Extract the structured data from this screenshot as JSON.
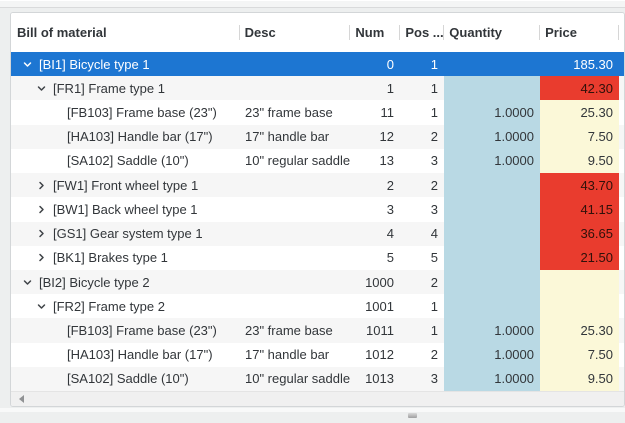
{
  "header": {
    "columns": [
      {
        "key": "name",
        "label": "Bill of material"
      },
      {
        "key": "desc",
        "label": "Desc"
      },
      {
        "key": "num",
        "label": "Num"
      },
      {
        "key": "pos",
        "label": "Pos ..."
      },
      {
        "key": "qty",
        "label": "Quantity"
      },
      {
        "key": "price",
        "label": "Price"
      }
    ]
  },
  "rows": [
    {
      "level": 0,
      "expand": "down",
      "name": "[BI1] Bicycle type 1",
      "desc": "",
      "num": "0",
      "pos": "1",
      "qty": "",
      "price": "185.30",
      "selected": true,
      "price_state": "normal"
    },
    {
      "level": 1,
      "expand": "down",
      "name": "[FR1] Frame type 1",
      "desc": "",
      "num": "1",
      "pos": "1",
      "qty": "",
      "price": "42.30",
      "selected": false,
      "price_state": "alert"
    },
    {
      "level": 2,
      "expand": "none",
      "name": "[FB103] Frame base (23\")",
      "desc": "23\" frame base",
      "num": "11",
      "pos": "1",
      "qty": "1.0000",
      "price": "25.30",
      "selected": false,
      "price_state": "normal"
    },
    {
      "level": 2,
      "expand": "none",
      "name": "[HA103] Handle bar (17\")",
      "desc": "17\" handle bar",
      "num": "12",
      "pos": "2",
      "qty": "1.0000",
      "price": "7.50",
      "selected": false,
      "price_state": "normal"
    },
    {
      "level": 2,
      "expand": "none",
      "name": "[SA102] Saddle (10\")",
      "desc": "10\" regular saddle",
      "num": "13",
      "pos": "3",
      "qty": "1.0000",
      "price": "9.50",
      "selected": false,
      "price_state": "normal"
    },
    {
      "level": 1,
      "expand": "right",
      "name": "[FW1] Front wheel type 1",
      "desc": "",
      "num": "2",
      "pos": "2",
      "qty": "",
      "price": "43.70",
      "selected": false,
      "price_state": "alert"
    },
    {
      "level": 1,
      "expand": "right",
      "name": "[BW1] Back wheel type 1",
      "desc": "",
      "num": "3",
      "pos": "3",
      "qty": "",
      "price": "41.15",
      "selected": false,
      "price_state": "alert"
    },
    {
      "level": 1,
      "expand": "right",
      "name": "[GS1] Gear system type 1",
      "desc": "",
      "num": "4",
      "pos": "4",
      "qty": "",
      "price": "36.65",
      "selected": false,
      "price_state": "alert"
    },
    {
      "level": 1,
      "expand": "right",
      "name": "[BK1] Brakes type 1",
      "desc": "",
      "num": "5",
      "pos": "5",
      "qty": "",
      "price": "21.50",
      "selected": false,
      "price_state": "alert"
    },
    {
      "level": 0,
      "expand": "down",
      "name": "[BI2] Bicycle type 2",
      "desc": "",
      "num": "1000",
      "pos": "2",
      "qty": "",
      "price": "",
      "selected": false,
      "price_state": "normal"
    },
    {
      "level": 1,
      "expand": "down",
      "name": "[FR2] Frame type 2",
      "desc": "",
      "num": "1001",
      "pos": "1",
      "qty": "",
      "price": "",
      "selected": false,
      "price_state": "normal"
    },
    {
      "level": 2,
      "expand": "none",
      "name": "[FB103] Frame base (23\")",
      "desc": "23\" frame base",
      "num": "1011",
      "pos": "1",
      "qty": "1.0000",
      "price": "25.30",
      "selected": false,
      "price_state": "normal"
    },
    {
      "level": 2,
      "expand": "none",
      "name": "[HA103] Handle bar (17\")",
      "desc": "17\" handle bar",
      "num": "1012",
      "pos": "2",
      "qty": "1.0000",
      "price": "7.50",
      "selected": false,
      "price_state": "normal"
    },
    {
      "level": 2,
      "expand": "none",
      "name": "[SA102] Saddle (10\")",
      "desc": "10\" regular saddle",
      "num": "1013",
      "pos": "3",
      "qty": "1.0000",
      "price": "9.50",
      "selected": false,
      "price_state": "normal"
    }
  ],
  "colors": {
    "selection_blue": "#1d76d2",
    "alert_red": "#e93c2e",
    "quantity_column_bg": "#b9d9e4",
    "price_column_bg": "#fbf8d8",
    "zebra_row_bg": "#f6f6f6",
    "text": "#32363a"
  }
}
